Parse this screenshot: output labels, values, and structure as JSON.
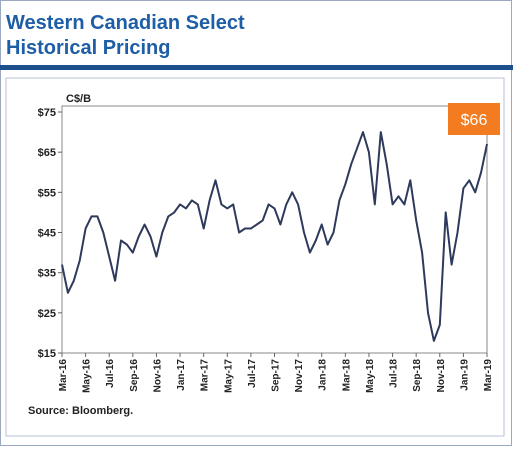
{
  "chart_data": {
    "type": "line",
    "title": "Western Canadian Select",
    "subtitle": "Historical Pricing",
    "y_label": "C$/B",
    "source": "Source: Bloomberg.",
    "annotation": "$66",
    "xlim": [
      0,
      36
    ],
    "xticks": [
      {
        "value": 0,
        "label": "Mar-16"
      },
      {
        "value": 2,
        "label": "May-16"
      },
      {
        "value": 4,
        "label": "Jul-16"
      },
      {
        "value": 6,
        "label": "Sep-16"
      },
      {
        "value": 8,
        "label": "Nov-16"
      },
      {
        "value": 10,
        "label": "Jan-17"
      },
      {
        "value": 12,
        "label": "Mar-17"
      },
      {
        "value": 14,
        "label": "May-17"
      },
      {
        "value": 16,
        "label": "Jul-17"
      },
      {
        "value": 18,
        "label": "Sep-17"
      },
      {
        "value": 20,
        "label": "Nov-17"
      },
      {
        "value": 22,
        "label": "Jan-18"
      },
      {
        "value": 24,
        "label": "Mar-18"
      },
      {
        "value": 26,
        "label": "May-18"
      },
      {
        "value": 28,
        "label": "Jul-18"
      },
      {
        "value": 30,
        "label": "Sep-18"
      },
      {
        "value": 32,
        "label": "Nov-18"
      },
      {
        "value": 34,
        "label": "Jan-19"
      },
      {
        "value": 36,
        "label": "Mar-19"
      }
    ],
    "ylim": [
      15,
      75
    ],
    "yticks": [
      {
        "value": 15,
        "label": "$15"
      },
      {
        "value": 25,
        "label": "$25"
      },
      {
        "value": 35,
        "label": "$35"
      },
      {
        "value": 45,
        "label": "$45"
      },
      {
        "value": 55,
        "label": "$55"
      },
      {
        "value": 65,
        "label": "$65"
      },
      {
        "value": 75,
        "label": "$75"
      }
    ],
    "series": [
      {
        "color": "#2e3a5c",
        "x": [
          0,
          0.5,
          1,
          1.5,
          2,
          2.5,
          3,
          3.5,
          4,
          4.5,
          5,
          5.5,
          6,
          6.5,
          7,
          7.5,
          8,
          8.5,
          9,
          9.5,
          10,
          10.5,
          11,
          11.5,
          12,
          12.5,
          13,
          13.5,
          14,
          14.5,
          15,
          15.5,
          16,
          16.5,
          17,
          17.5,
          18,
          18.5,
          19,
          19.5,
          20,
          20.5,
          21,
          21.5,
          22,
          22.5,
          23,
          23.5,
          24,
          24.5,
          25,
          25.5,
          26,
          26.5,
          27,
          27.5,
          28,
          28.5,
          29,
          29.5,
          30,
          30.5,
          31,
          31.5,
          32,
          32.5,
          33,
          33.5,
          34,
          34.5,
          35,
          35.5,
          36
        ],
        "values": [
          37,
          30,
          33,
          38,
          46,
          49,
          49,
          45,
          39,
          33,
          43,
          42,
          40,
          44,
          47,
          44,
          39,
          45,
          49,
          50,
          52,
          51,
          53,
          52,
          46,
          53,
          58,
          52,
          51,
          52,
          45,
          46,
          46,
          47,
          48,
          52,
          51,
          47,
          52,
          55,
          52,
          45,
          40,
          43,
          47,
          42,
          45,
          53,
          57,
          62,
          66,
          70,
          65,
          52,
          70,
          62,
          52,
          54,
          52,
          58,
          48,
          40,
          25,
          18,
          22,
          50,
          37,
          45,
          56,
          58,
          55,
          60,
          67
        ]
      }
    ]
  }
}
